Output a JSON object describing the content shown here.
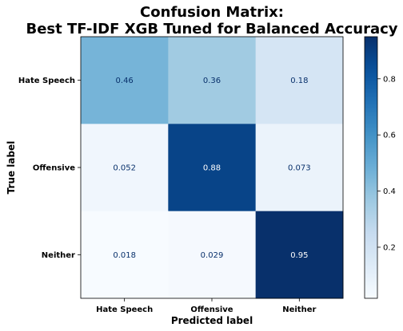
{
  "chart_data": {
    "type": "heatmap",
    "title_lines": [
      "Confusion Matrix:",
      "Best TF-IDF XGB Tuned for Balanced Accuracy"
    ],
    "xlabel": "Predicted label",
    "ylabel": "True label",
    "x_categories": [
      "Hate Speech",
      "Offensive",
      "Neither"
    ],
    "y_categories": [
      "Hate Speech",
      "Offensive",
      "Neither"
    ],
    "values": [
      [
        0.46,
        0.36,
        0.18
      ],
      [
        0.052,
        0.88,
        0.073
      ],
      [
        0.018,
        0.029,
        0.95
      ]
    ],
    "value_labels": [
      [
        "0.46",
        "0.36",
        "0.18"
      ],
      [
        "0.052",
        "0.88",
        "0.073"
      ],
      [
        "0.018",
        "0.029",
        "0.95"
      ]
    ],
    "colormap": "Blues",
    "colorbar": {
      "range": [
        0.018,
        0.95
      ],
      "ticks": [
        0.2,
        0.4,
        0.6,
        0.8
      ],
      "tick_labels": [
        "0.2",
        "0.4",
        "0.6",
        "0.8"
      ]
    },
    "text_colors": {
      "light_cells": "#08306b",
      "dark_cells": "#ffffff"
    }
  }
}
